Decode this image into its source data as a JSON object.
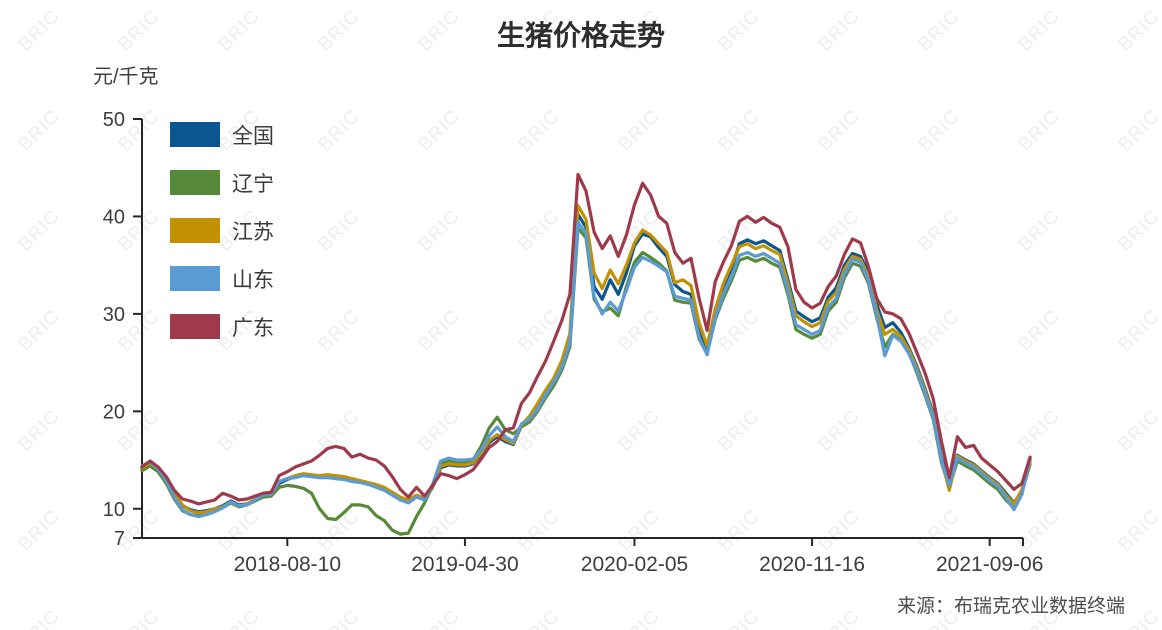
{
  "title": "生猪价格走势",
  "unit_label": "元/千克",
  "source": "来源：布瑞克农业数据终端",
  "watermark": {
    "text": "BRIC"
  },
  "colors": {
    "axis": "#262626",
    "tick_label": "#3d3d3d",
    "title_text": "#2e2e2e",
    "watermark": "#ededed"
  },
  "legend": {
    "items": [
      {
        "id": "national",
        "label": "全国",
        "color": "#0b5691"
      },
      {
        "id": "liaoning",
        "label": "辽宁",
        "color": "#578a38"
      },
      {
        "id": "jiangsu",
        "label": "江苏",
        "color": "#c29104"
      },
      {
        "id": "shandong",
        "label": "山东",
        "color": "#5b9bd5"
      },
      {
        "id": "guangdong",
        "label": "广东",
        "color": "#9e3a4c"
      }
    ]
  },
  "chart_data": {
    "type": "line",
    "title": "生猪价格走势",
    "ylabel": "元/千克",
    "ylim": [
      7,
      50
    ],
    "y_ticks": [
      7,
      10,
      20,
      30,
      40,
      50
    ],
    "grid": false,
    "legend_position": "top-left-inside",
    "x_tick_labels": [
      "2018-08-10",
      "2019-04-30",
      "2020-02-05",
      "2020-11-16",
      "2021-09-06"
    ],
    "x_tick_indices": [
      18,
      40,
      61,
      83,
      105
    ],
    "x": [
      "2017-12-20",
      "2018-01-02",
      "2018-01-15",
      "2018-01-28",
      "2018-02-10",
      "2018-02-23",
      "2018-03-08",
      "2018-03-21",
      "2018-04-03",
      "2018-04-16",
      "2018-04-29",
      "2018-05-12",
      "2018-05-25",
      "2018-06-07",
      "2018-06-20",
      "2018-07-03",
      "2018-07-16",
      "2018-07-29",
      "2018-08-11",
      "2018-08-24",
      "2018-09-06",
      "2018-09-19",
      "2018-10-02",
      "2018-10-15",
      "2018-10-28",
      "2018-11-10",
      "2018-11-23",
      "2018-12-06",
      "2018-12-19",
      "2019-01-01",
      "2019-01-14",
      "2019-01-27",
      "2019-02-09",
      "2019-02-22",
      "2019-03-07",
      "2019-03-20",
      "2019-04-02",
      "2019-04-15",
      "2019-04-28",
      "2019-05-11",
      "2019-05-24",
      "2019-06-06",
      "2019-06-19",
      "2019-07-02",
      "2019-07-15",
      "2019-07-28",
      "2019-08-10",
      "2019-08-23",
      "2019-09-05",
      "2019-09-18",
      "2019-10-01",
      "2019-10-14",
      "2019-10-27",
      "2019-11-09",
      "2019-11-22",
      "2019-12-05",
      "2019-12-18",
      "2019-12-31",
      "2020-01-13",
      "2020-01-26",
      "2020-02-08",
      "2020-02-21",
      "2020-03-05",
      "2020-03-18",
      "2020-03-31",
      "2020-04-13",
      "2020-04-26",
      "2020-05-09",
      "2020-05-22",
      "2020-06-04",
      "2020-06-17",
      "2020-06-30",
      "2020-07-13",
      "2020-07-26",
      "2020-08-08",
      "2020-08-21",
      "2020-09-03",
      "2020-09-16",
      "2020-09-29",
      "2020-10-12",
      "2020-10-25",
      "2020-11-07",
      "2020-11-20",
      "2020-12-03",
      "2020-12-16",
      "2020-12-29",
      "2021-01-11",
      "2021-01-24",
      "2021-02-06",
      "2021-02-19",
      "2021-03-04",
      "2021-03-17",
      "2021-03-30",
      "2021-04-12",
      "2021-04-25",
      "2021-05-08",
      "2021-05-21",
      "2021-06-03",
      "2021-06-16",
      "2021-06-29",
      "2021-07-12",
      "2021-07-25",
      "2021-08-07",
      "2021-08-20",
      "2021-09-02",
      "2021-09-15",
      "2021-09-28",
      "2021-10-11",
      "2021-10-24",
      "2021-11-06"
    ],
    "series": [
      {
        "id": "national",
        "name": "全国",
        "color": "#0b5691",
        "values": [
          14.1,
          14.6,
          14.0,
          13.0,
          11.5,
          10.3,
          9.9,
          9.7,
          9.8,
          10.0,
          10.3,
          10.8,
          10.4,
          10.5,
          10.9,
          11.3,
          11.4,
          12.6,
          13.0,
          13.3,
          13.5,
          13.4,
          13.3,
          13.4,
          13.3,
          13.2,
          12.9,
          12.8,
          12.6,
          12.4,
          12.1,
          11.6,
          11.1,
          10.8,
          11.3,
          11.0,
          12.2,
          14.2,
          14.5,
          14.4,
          14.4,
          14.6,
          15.6,
          16.8,
          17.4,
          16.9,
          16.6,
          18.5,
          19.3,
          20.5,
          22.0,
          23.2,
          24.8,
          27.5,
          40.2,
          38.9,
          32.8,
          31.5,
          33.5,
          32.0,
          34.2,
          37.0,
          38.2,
          37.9,
          36.8,
          35.9,
          33.0,
          32.3,
          32.0,
          28.3,
          26.4,
          30.2,
          32.8,
          34.6,
          37.2,
          37.6,
          37.2,
          37.5,
          37.0,
          36.5,
          33.5,
          30.3,
          29.7,
          29.2,
          29.6,
          31.7,
          32.7,
          35.0,
          36.2,
          35.9,
          34.2,
          31.0,
          28.6,
          29.1,
          28.1,
          26.5,
          24.6,
          22.3,
          19.8,
          15.3,
          12.6,
          15.5,
          15.0,
          14.6,
          13.9,
          13.2,
          12.6,
          11.6,
          10.6,
          11.8,
          15.0
        ]
      },
      {
        "id": "liaoning",
        "name": "辽宁",
        "color": "#578a38",
        "values": [
          13.9,
          14.4,
          13.8,
          12.6,
          11.0,
          9.8,
          9.4,
          9.3,
          9.5,
          9.8,
          10.1,
          10.6,
          10.2,
          10.4,
          10.8,
          11.2,
          11.3,
          12.2,
          12.4,
          12.3,
          12.1,
          11.6,
          10.0,
          9.0,
          8.9,
          9.6,
          10.4,
          10.4,
          10.2,
          9.3,
          8.8,
          7.8,
          7.4,
          7.5,
          9.2,
          10.6,
          12.4,
          14.7,
          14.9,
          14.7,
          14.8,
          15.0,
          16.4,
          18.3,
          19.4,
          18.1,
          17.7,
          18.4,
          18.9,
          20.0,
          21.4,
          22.6,
          24.2,
          26.6,
          38.8,
          37.8,
          31.5,
          30.2,
          30.6,
          29.8,
          32.8,
          35.3,
          36.3,
          35.8,
          35.2,
          34.4,
          31.4,
          31.2,
          31.1,
          27.4,
          25.9,
          29.4,
          31.6,
          33.4,
          35.5,
          35.8,
          35.4,
          35.7,
          35.2,
          34.8,
          32.0,
          28.4,
          27.9,
          27.5,
          27.9,
          30.3,
          31.2,
          33.7,
          35.2,
          34.9,
          33.1,
          29.6,
          26.6,
          27.9,
          27.3,
          26.0,
          23.9,
          21.6,
          19.2,
          14.8,
          12.2,
          14.9,
          14.4,
          14.0,
          13.3,
          12.6,
          12.0,
          10.9,
          10.1,
          11.7,
          14.6
        ]
      },
      {
        "id": "jiangsu",
        "name": "江苏",
        "color": "#c29104",
        "values": [
          14.2,
          14.7,
          14.1,
          13.1,
          11.6,
          10.4,
          9.8,
          9.6,
          9.7,
          10.0,
          10.2,
          10.7,
          10.3,
          10.5,
          11.0,
          11.4,
          11.5,
          12.8,
          13.1,
          13.4,
          13.6,
          13.5,
          13.4,
          13.5,
          13.4,
          13.3,
          13.1,
          12.9,
          12.7,
          12.5,
          12.2,
          11.7,
          11.2,
          10.9,
          11.4,
          11.1,
          12.3,
          14.4,
          14.6,
          14.5,
          14.5,
          14.7,
          15.7,
          17.0,
          17.6,
          17.1,
          16.7,
          18.6,
          19.5,
          20.8,
          22.2,
          23.4,
          25.2,
          28.0,
          41.1,
          39.7,
          34.2,
          32.6,
          34.5,
          33.1,
          35.0,
          37.3,
          38.6,
          38.1,
          37.2,
          36.3,
          33.2,
          33.5,
          32.9,
          29.1,
          26.7,
          30.5,
          33.1,
          35.0,
          36.9,
          37.2,
          36.7,
          37.0,
          36.5,
          36.1,
          33.1,
          29.8,
          29.2,
          28.7,
          29.1,
          31.3,
          32.2,
          34.6,
          35.9,
          35.6,
          33.8,
          30.4,
          27.9,
          28.4,
          27.7,
          26.3,
          24.4,
          22.1,
          19.6,
          15.1,
          11.9,
          15.4,
          14.9,
          14.5,
          13.8,
          13.1,
          12.5,
          11.4,
          10.5,
          12.0,
          14.9
        ]
      },
      {
        "id": "shandong",
        "name": "山东",
        "color": "#5b9bd5",
        "values": [
          14.4,
          14.8,
          14.1,
          12.9,
          11.2,
          9.9,
          9.4,
          9.2,
          9.4,
          9.7,
          10.1,
          10.7,
          10.3,
          10.4,
          10.9,
          11.4,
          11.5,
          12.8,
          13.1,
          13.2,
          13.4,
          13.3,
          13.2,
          13.2,
          13.1,
          13.0,
          12.8,
          12.7,
          12.5,
          12.2,
          11.9,
          11.4,
          10.9,
          10.6,
          11.2,
          10.9,
          12.5,
          14.9,
          15.2,
          15.0,
          15.0,
          15.1,
          16.0,
          17.5,
          18.4,
          17.4,
          16.9,
          18.7,
          19.2,
          20.2,
          21.7,
          23.0,
          24.5,
          27.0,
          39.4,
          38.3,
          31.8,
          30.0,
          31.2,
          30.3,
          32.4,
          34.8,
          35.8,
          35.4,
          34.9,
          34.3,
          31.8,
          31.6,
          31.4,
          27.6,
          25.8,
          29.6,
          32.0,
          33.8,
          36.0,
          36.3,
          35.9,
          36.2,
          35.7,
          35.2,
          32.4,
          28.9,
          28.4,
          27.9,
          28.3,
          30.7,
          31.6,
          34.1,
          35.6,
          35.3,
          33.4,
          29.9,
          25.7,
          27.8,
          27.2,
          25.9,
          24.1,
          21.8,
          19.4,
          15.0,
          12.4,
          15.2,
          14.7,
          14.3,
          13.6,
          12.9,
          12.3,
          11.2,
          9.9,
          11.5,
          15.2
        ]
      },
      {
        "id": "guangdong",
        "name": "广东",
        "color": "#9e3a4c",
        "values": [
          14.3,
          14.9,
          14.3,
          13.3,
          11.9,
          11.0,
          10.8,
          10.5,
          10.7,
          10.9,
          11.6,
          11.3,
          10.9,
          11.0,
          11.3,
          11.6,
          11.7,
          13.4,
          13.8,
          14.3,
          14.6,
          14.9,
          15.5,
          16.2,
          16.4,
          16.2,
          15.3,
          15.6,
          15.2,
          15.0,
          14.4,
          13.3,
          12.0,
          11.2,
          12.2,
          11.3,
          12.4,
          13.6,
          13.4,
          13.1,
          13.5,
          14.0,
          15.1,
          16.3,
          16.9,
          18.1,
          18.3,
          20.8,
          21.9,
          23.6,
          25.2,
          27.2,
          29.3,
          32.0,
          44.3,
          42.6,
          38.4,
          36.7,
          38.0,
          35.9,
          38.1,
          41.2,
          43.4,
          42.2,
          40.0,
          39.3,
          36.3,
          35.2,
          35.7,
          31.6,
          28.3,
          33.3,
          35.3,
          37.0,
          39.5,
          40.0,
          39.4,
          39.9,
          39.3,
          38.9,
          36.9,
          32.5,
          31.2,
          30.6,
          31.1,
          32.8,
          33.9,
          36.1,
          37.7,
          37.3,
          34.8,
          31.6,
          30.2,
          30.0,
          29.5,
          28.0,
          26.0,
          23.9,
          21.3,
          17.0,
          13.2,
          17.4,
          16.3,
          16.5,
          15.2,
          14.5,
          13.8,
          12.9,
          12.0,
          12.6,
          15.3
        ]
      }
    ]
  }
}
